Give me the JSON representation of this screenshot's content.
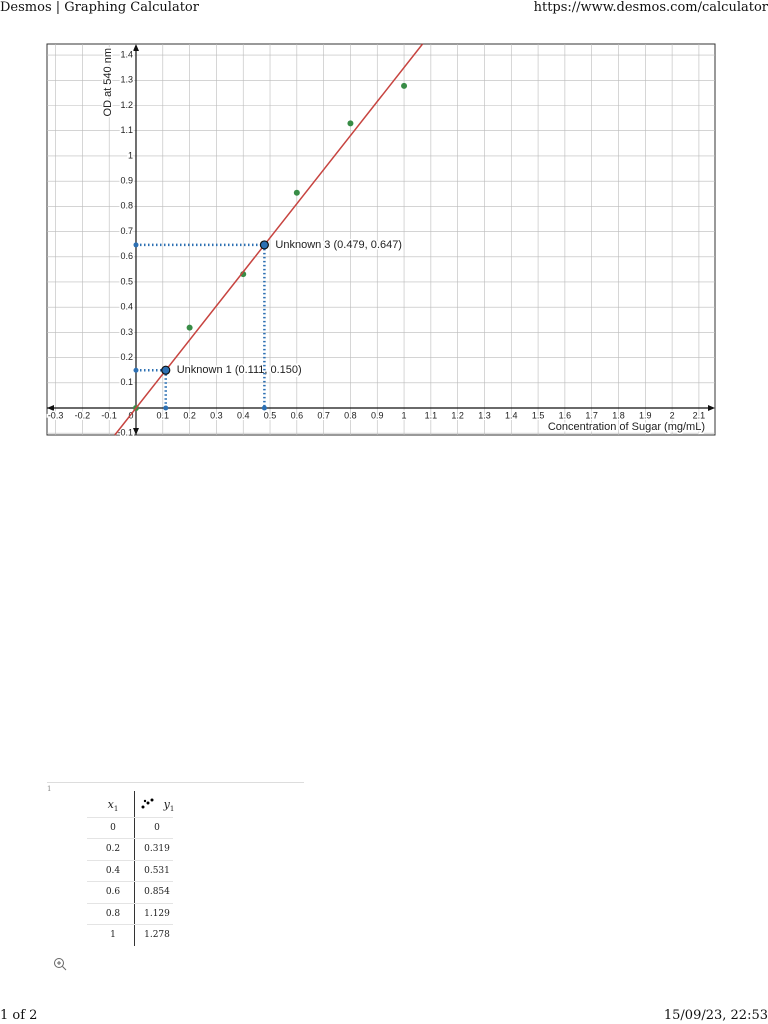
{
  "header": {
    "title": "Desmos | Graphing Calculator",
    "url": "https://www.desmos.com/calculator"
  },
  "chart_data": {
    "type": "scatter",
    "x_label": "Concentration of Sugar (mg/mL)",
    "y_label": "OD at 540 nm",
    "xlim": [
      -0.332,
      2.16
    ],
    "ylim": [
      -0.107,
      1.444
    ],
    "xticks": [
      -0.3,
      -0.2,
      -0.1,
      0,
      0.1,
      0.2,
      0.3,
      0.4,
      0.5,
      0.6,
      0.7,
      0.8,
      0.9,
      1,
      1.1,
      1.2,
      1.3,
      1.4,
      1.5,
      1.6,
      1.7,
      1.8,
      1.9,
      2,
      2.1
    ],
    "yticks": [
      -0.1,
      0.1,
      0.2,
      0.3,
      0.4,
      0.5,
      0.6,
      0.7,
      0.8,
      0.9,
      1,
      1.1,
      1.2,
      1.3,
      1.4
    ],
    "grid": true,
    "series": [
      {
        "type": "scatter",
        "color": "#388c46",
        "x": [
          0,
          0.2,
          0.4,
          0.6,
          0.8,
          1
        ],
        "values": [
          0,
          0.319,
          0.531,
          0.854,
          1.129,
          1.278
        ]
      },
      {
        "type": "line",
        "color": "#c74440",
        "x": [
          -0.079,
          1.069
        ],
        "values": [
          -0.107,
          1.444
        ]
      },
      {
        "type": "point",
        "color": "#2d70b3",
        "x": [
          0.111,
          0.479
        ],
        "values": [
          0.15,
          0.647
        ],
        "labels": [
          "Unknown 1 (0.111, 0.150)",
          "Unknown 3 (0.479, 0.647)"
        ]
      }
    ]
  },
  "table": {
    "row_number": "1",
    "columns": [
      {
        "var": "x",
        "sub": "1"
      },
      {
        "var": "y",
        "sub": "1"
      }
    ],
    "rows": [
      [
        "0",
        "0"
      ],
      [
        "0.2",
        "0.319"
      ],
      [
        "0.4",
        "0.531"
      ],
      [
        "0.6",
        "0.854"
      ],
      [
        "0.8",
        "1.129"
      ],
      [
        "1",
        "1.278"
      ]
    ]
  },
  "footer": {
    "page": "1 of 2",
    "datetime": "15/09/23, 22:53"
  }
}
